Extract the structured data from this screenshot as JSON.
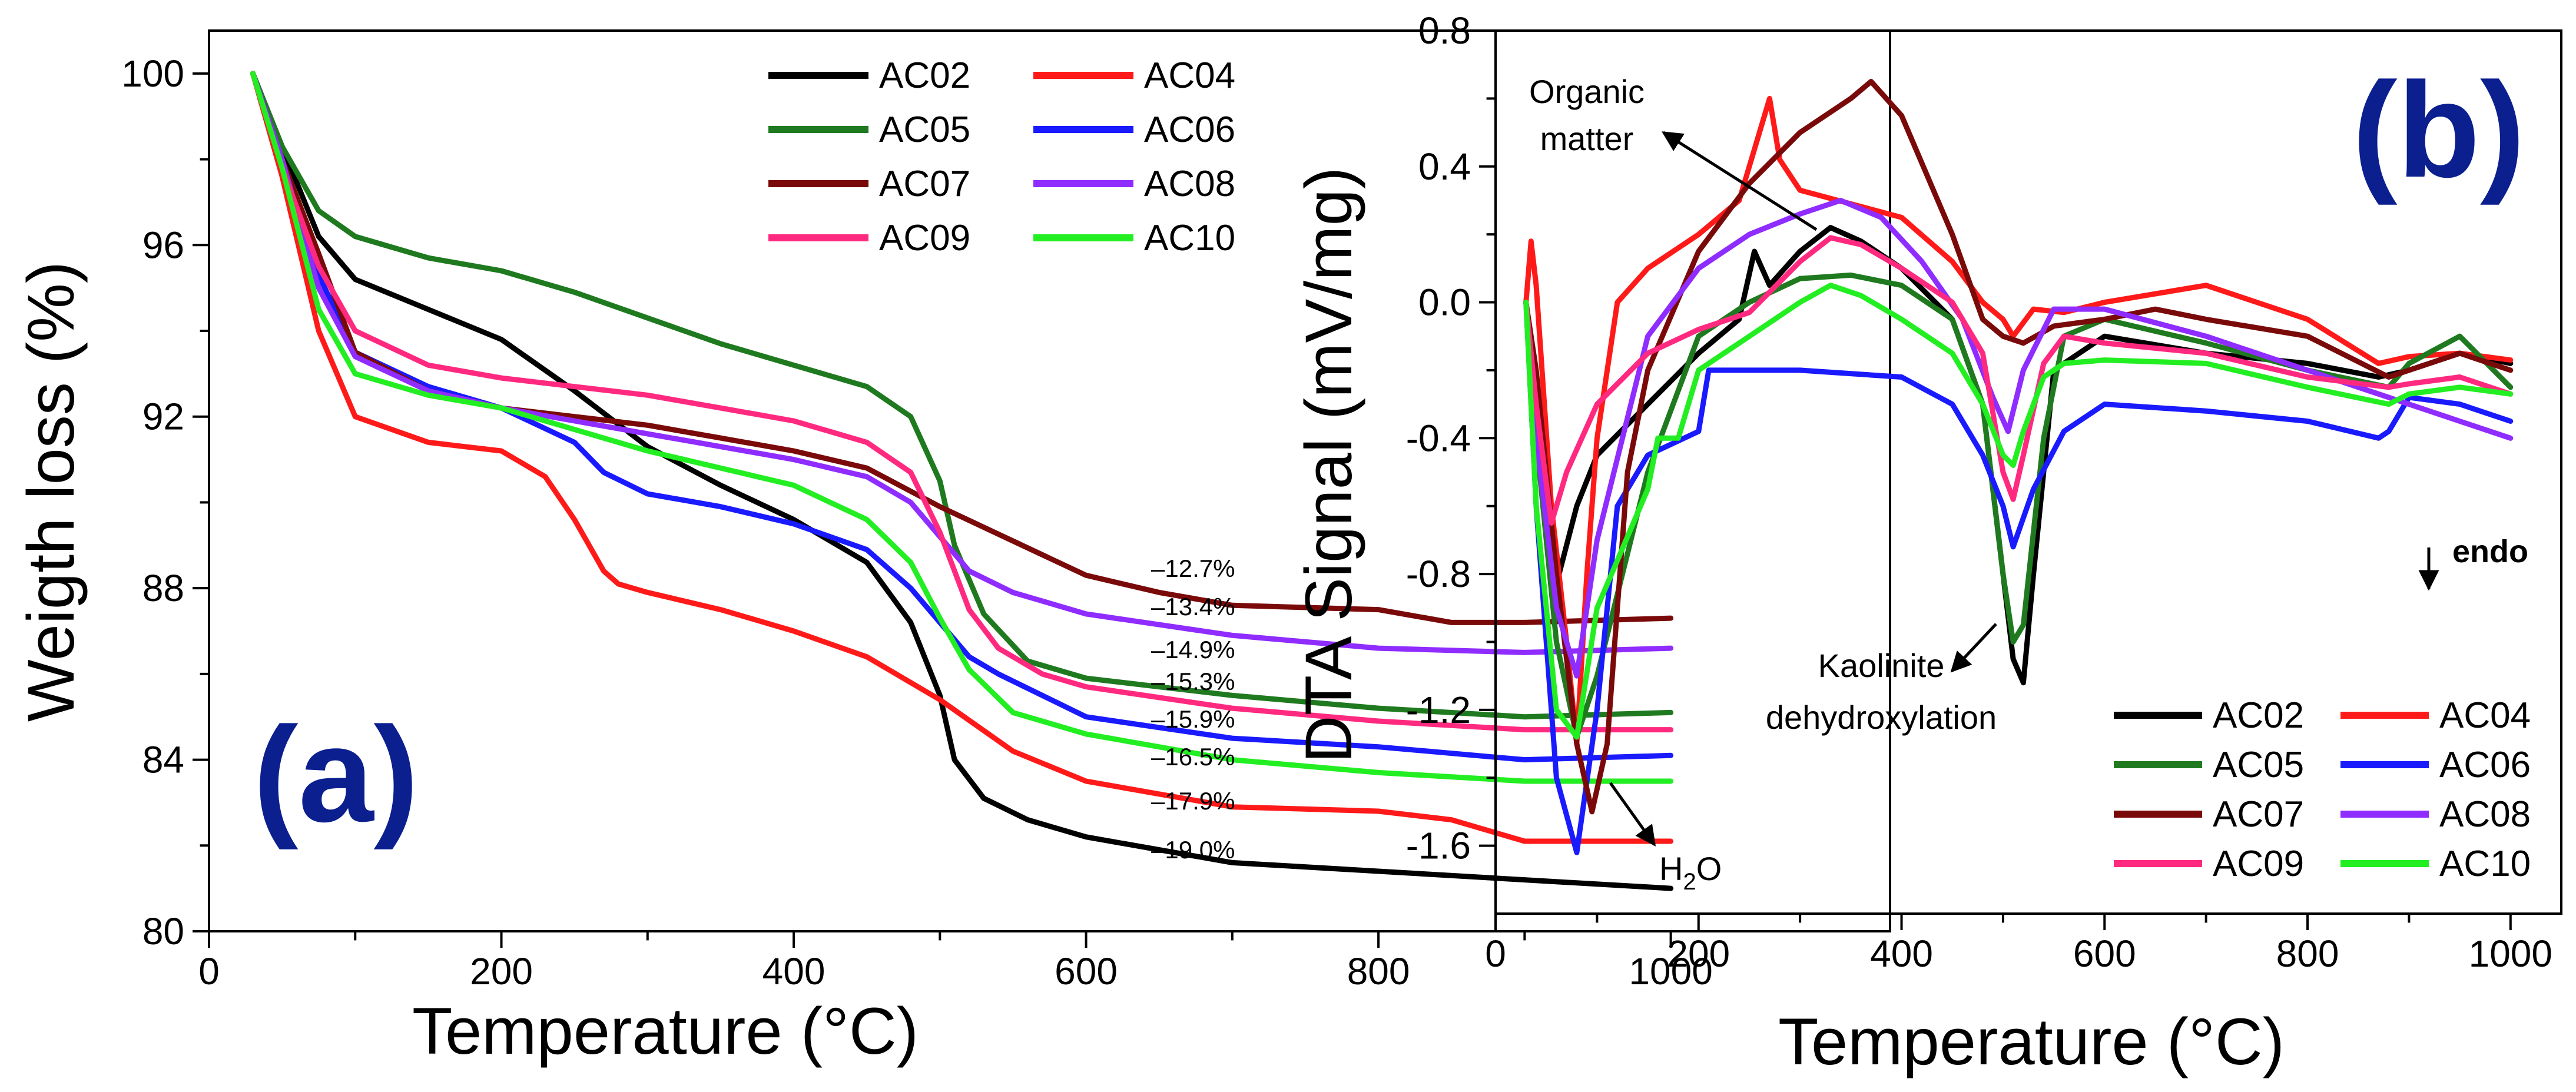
{
  "colors": {
    "AC02": "#000000",
    "AC04": "#ff1a1a",
    "AC05": "#1f7a1f",
    "AC06": "#1a1aff",
    "AC07": "#7a0a0a",
    "AC08": "#8f2cff",
    "AC09": "#ff2a80",
    "AC10": "#22ee22",
    "panel_label": "#0b1f8f"
  },
  "chart_data": [
    {
      "type": "line",
      "panel_label": "(a)",
      "xlabel": "Temperature (°C)",
      "ylabel": "Weigth loss (%)",
      "xlim": [
        0,
        1150
      ],
      "ylim": [
        80,
        101
      ],
      "xticks": [
        "0",
        "200",
        "400",
        "600",
        "800",
        "1000"
      ],
      "yticks": [
        "80",
        "84",
        "88",
        "92",
        "96",
        "100"
      ],
      "legend_position": "top-right",
      "final_labels": [
        "–12.7%",
        "–13.4%",
        "–14.9%",
        "–15.3%",
        "–15.9%",
        "–16.5%",
        "–17.9%",
        "–19.0%"
      ],
      "series": [
        {
          "name": "AC02",
          "x": [
            30,
            50,
            75,
            100,
            150,
            200,
            250,
            300,
            350,
            400,
            450,
            480,
            500,
            510,
            530,
            560,
            600,
            700,
            800,
            900,
            1000
          ],
          "y": [
            100,
            98.3,
            96.2,
            95.2,
            94.5,
            93.8,
            92.6,
            91.3,
            90.4,
            89.6,
            88.6,
            87.2,
            85.5,
            84.0,
            83.1,
            82.6,
            82.2,
            81.6,
            81.4,
            81.2,
            81.0
          ]
        },
        {
          "name": "AC04",
          "x": [
            30,
            50,
            75,
            100,
            150,
            200,
            230,
            250,
            270,
            280,
            300,
            350,
            400,
            450,
            500,
            550,
            600,
            700,
            800,
            850,
            900,
            1000
          ],
          "y": [
            100,
            97.6,
            94.0,
            92.0,
            91.4,
            91.2,
            90.6,
            89.6,
            88.4,
            88.1,
            87.9,
            87.5,
            87.0,
            86.4,
            85.4,
            84.2,
            83.5,
            82.9,
            82.8,
            82.6,
            82.1,
            82.1
          ]
        },
        {
          "name": "AC05",
          "x": [
            30,
            50,
            75,
            100,
            150,
            200,
            250,
            300,
            350,
            400,
            450,
            480,
            500,
            510,
            530,
            560,
            600,
            700,
            800,
            900,
            1000
          ],
          "y": [
            100,
            98.3,
            96.8,
            96.2,
            95.7,
            95.4,
            94.9,
            94.3,
            93.7,
            93.2,
            92.7,
            92.0,
            90.5,
            89.0,
            87.4,
            86.3,
            85.9,
            85.5,
            85.2,
            85.0,
            85.1
          ]
        },
        {
          "name": "AC06",
          "x": [
            30,
            50,
            75,
            100,
            150,
            200,
            250,
            270,
            300,
            350,
            400,
            450,
            480,
            500,
            520,
            540,
            570,
            600,
            700,
            800,
            900,
            1000
          ],
          "y": [
            100,
            98.0,
            95.3,
            93.5,
            92.7,
            92.2,
            91.4,
            90.7,
            90.2,
            89.9,
            89.5,
            88.9,
            88.0,
            87.2,
            86.4,
            86.0,
            85.5,
            85.0,
            84.5,
            84.3,
            84.0,
            84.1
          ]
        },
        {
          "name": "AC07",
          "x": [
            30,
            50,
            75,
            100,
            150,
            200,
            250,
            300,
            350,
            400,
            450,
            500,
            550,
            600,
            650,
            700,
            800,
            850,
            900,
            1000
          ],
          "y": [
            100,
            98.0,
            95.8,
            93.5,
            92.6,
            92.2,
            92.0,
            91.8,
            91.5,
            91.2,
            90.8,
            89.9,
            89.1,
            88.3,
            87.9,
            87.6,
            87.5,
            87.2,
            87.2,
            87.3
          ]
        },
        {
          "name": "AC08",
          "x": [
            30,
            50,
            75,
            100,
            150,
            200,
            250,
            300,
            350,
            400,
            450,
            480,
            500,
            520,
            550,
            600,
            700,
            800,
            900,
            1000
          ],
          "y": [
            100,
            98.0,
            95.0,
            93.4,
            92.6,
            92.2,
            91.9,
            91.6,
            91.3,
            91.0,
            90.6,
            90.0,
            89.2,
            88.4,
            87.9,
            87.4,
            86.9,
            86.6,
            86.5,
            86.6
          ]
        },
        {
          "name": "AC09",
          "x": [
            30,
            50,
            75,
            100,
            150,
            200,
            250,
            300,
            350,
            400,
            450,
            480,
            500,
            520,
            540,
            570,
            600,
            700,
            800,
            900,
            1000
          ],
          "y": [
            100,
            97.8,
            95.5,
            94.0,
            93.2,
            92.9,
            92.7,
            92.5,
            92.2,
            91.9,
            91.4,
            90.7,
            89.3,
            87.5,
            86.6,
            86.0,
            85.7,
            85.2,
            84.9,
            84.7,
            84.7
          ]
        },
        {
          "name": "AC10",
          "x": [
            30,
            50,
            75,
            100,
            150,
            200,
            250,
            300,
            350,
            400,
            450,
            480,
            500,
            520,
            550,
            600,
            700,
            800,
            900,
            1000
          ],
          "y": [
            100,
            97.8,
            94.5,
            93.0,
            92.5,
            92.2,
            91.7,
            91.2,
            90.8,
            90.4,
            89.6,
            88.6,
            87.3,
            86.1,
            85.1,
            84.6,
            84.0,
            83.7,
            83.5,
            83.5
          ]
        }
      ]
    },
    {
      "type": "line",
      "panel_label": "(b)",
      "xlabel": "Temperature (°C)",
      "ylabel": "DTA Signal (mV/mg)",
      "xlim": [
        0,
        1050
      ],
      "ylim": [
        -1.8,
        0.8
      ],
      "xticks": [
        "0",
        "200",
        "400",
        "600",
        "800",
        "1000"
      ],
      "yticks": [
        "-1.6",
        "-1.2",
        "-0.8",
        "-0.4",
        "0.0",
        "0.4",
        "0.8"
      ],
      "legend_position": "bottom-right",
      "annotations": {
        "organic_line1": "Organic",
        "organic_line2": "matter",
        "kaolinite_line1": "Kaolinite",
        "kaolinite_line2": "dehydroxylation",
        "h2o_main": "H",
        "h2o_sub": "2",
        "h2o_tail": "O",
        "endo": "endo"
      },
      "series": [
        {
          "name": "AC02",
          "x": [
            30,
            40,
            60,
            80,
            100,
            150,
            200,
            240,
            255,
            270,
            300,
            330,
            360,
            400,
            450,
            480,
            500,
            510,
            520,
            530,
            550,
            600,
            700,
            800,
            870,
            900,
            950,
            1000
          ],
          "y": [
            0,
            -0.3,
            -0.83,
            -0.6,
            -0.45,
            -0.3,
            -0.15,
            -0.05,
            0.15,
            0.05,
            0.15,
            0.22,
            0.18,
            0.1,
            -0.05,
            -0.3,
            -0.8,
            -1.05,
            -1.12,
            -0.8,
            -0.2,
            -0.1,
            -0.15,
            -0.18,
            -0.22,
            -0.2,
            -0.15,
            -0.18
          ]
        },
        {
          "name": "AC04",
          "x": [
            30,
            35,
            40,
            55,
            70,
            80,
            90,
            100,
            120,
            150,
            200,
            240,
            260,
            270,
            280,
            300,
            400,
            450,
            480,
            500,
            510,
            530,
            560,
            600,
            700,
            800,
            870,
            900,
            950,
            1000
          ],
          "y": [
            0,
            0.18,
            0.05,
            -0.6,
            -1.0,
            -1.3,
            -0.8,
            -0.4,
            0.0,
            0.1,
            0.2,
            0.3,
            0.5,
            0.6,
            0.42,
            0.33,
            0.25,
            0.12,
            0.0,
            -0.05,
            -0.1,
            -0.02,
            -0.03,
            0.0,
            0.05,
            -0.05,
            -0.18,
            -0.16,
            -0.15,
            -0.17
          ]
        },
        {
          "name": "AC05",
          "x": [
            30,
            40,
            60,
            80,
            100,
            150,
            200,
            250,
            300,
            350,
            400,
            450,
            480,
            500,
            510,
            520,
            540,
            560,
            600,
            700,
            800,
            880,
            900,
            950,
            1000
          ],
          "y": [
            0,
            -0.4,
            -1.0,
            -1.28,
            -1.1,
            -0.5,
            -0.1,
            0.0,
            0.07,
            0.08,
            0.05,
            -0.05,
            -0.3,
            -0.8,
            -1.0,
            -0.95,
            -0.4,
            -0.1,
            -0.05,
            -0.12,
            -0.2,
            -0.25,
            -0.18,
            -0.1,
            -0.25
          ]
        },
        {
          "name": "AC06",
          "x": [
            30,
            40,
            60,
            80,
            100,
            120,
            150,
            200,
            210,
            220,
            250,
            300,
            400,
            450,
            480,
            500,
            510,
            530,
            560,
            600,
            700,
            800,
            870,
            880,
            900,
            950,
            1000
          ],
          "y": [
            0,
            -0.6,
            -1.4,
            -1.62,
            -1.2,
            -0.6,
            -0.45,
            -0.38,
            -0.2,
            -0.2,
            -0.2,
            -0.2,
            -0.22,
            -0.3,
            -0.45,
            -0.6,
            -0.72,
            -0.55,
            -0.38,
            -0.3,
            -0.32,
            -0.35,
            -0.4,
            -0.38,
            -0.28,
            -0.3,
            -0.35
          ]
        },
        {
          "name": "AC07",
          "x": [
            30,
            40,
            60,
            80,
            95,
            110,
            130,
            150,
            200,
            250,
            300,
            350,
            370,
            400,
            450,
            480,
            500,
            520,
            550,
            600,
            650,
            700,
            800,
            880,
            900,
            950,
            1000
          ],
          "y": [
            0,
            -0.2,
            -0.8,
            -1.3,
            -1.5,
            -1.3,
            -0.5,
            -0.2,
            0.15,
            0.35,
            0.5,
            0.6,
            0.65,
            0.55,
            0.2,
            -0.05,
            -0.1,
            -0.12,
            -0.07,
            -0.05,
            -0.02,
            -0.05,
            -0.1,
            -0.22,
            -0.2,
            -0.15,
            -0.2
          ]
        },
        {
          "name": "AC08",
          "x": [
            30,
            40,
            60,
            80,
            100,
            150,
            200,
            250,
            300,
            340,
            380,
            420,
            460,
            490,
            505,
            520,
            550,
            600,
            700,
            800,
            850,
            900,
            950,
            1000
          ],
          "y": [
            0,
            -0.4,
            -0.9,
            -1.1,
            -0.7,
            -0.1,
            0.1,
            0.2,
            0.26,
            0.3,
            0.25,
            0.12,
            -0.05,
            -0.28,
            -0.38,
            -0.2,
            -0.02,
            -0.02,
            -0.1,
            -0.2,
            -0.25,
            -0.3,
            -0.35,
            -0.4
          ]
        },
        {
          "name": "AC09",
          "x": [
            30,
            40,
            55,
            70,
            100,
            150,
            200,
            250,
            300,
            330,
            360,
            400,
            450,
            480,
            500,
            510,
            520,
            540,
            560,
            600,
            700,
            800,
            880,
            900,
            950,
            1000
          ],
          "y": [
            0,
            -0.3,
            -0.65,
            -0.5,
            -0.3,
            -0.15,
            -0.08,
            -0.03,
            0.12,
            0.19,
            0.17,
            0.1,
            0.0,
            -0.15,
            -0.5,
            -0.58,
            -0.45,
            -0.18,
            -0.1,
            -0.12,
            -0.15,
            -0.22,
            -0.25,
            -0.24,
            -0.22,
            -0.27
          ]
        },
        {
          "name": "AC10",
          "x": [
            30,
            40,
            60,
            80,
            100,
            150,
            160,
            180,
            200,
            250,
            300,
            330,
            360,
            400,
            450,
            480,
            500,
            510,
            520,
            540,
            560,
            600,
            700,
            800,
            880,
            900,
            950,
            1000
          ],
          "y": [
            0,
            -0.6,
            -1.2,
            -1.28,
            -0.9,
            -0.55,
            -0.4,
            -0.4,
            -0.2,
            -0.1,
            0.0,
            0.05,
            0.02,
            -0.05,
            -0.15,
            -0.3,
            -0.45,
            -0.48,
            -0.38,
            -0.22,
            -0.18,
            -0.17,
            -0.18,
            -0.25,
            -0.3,
            -0.27,
            -0.25,
            -0.27
          ]
        }
      ]
    }
  ]
}
